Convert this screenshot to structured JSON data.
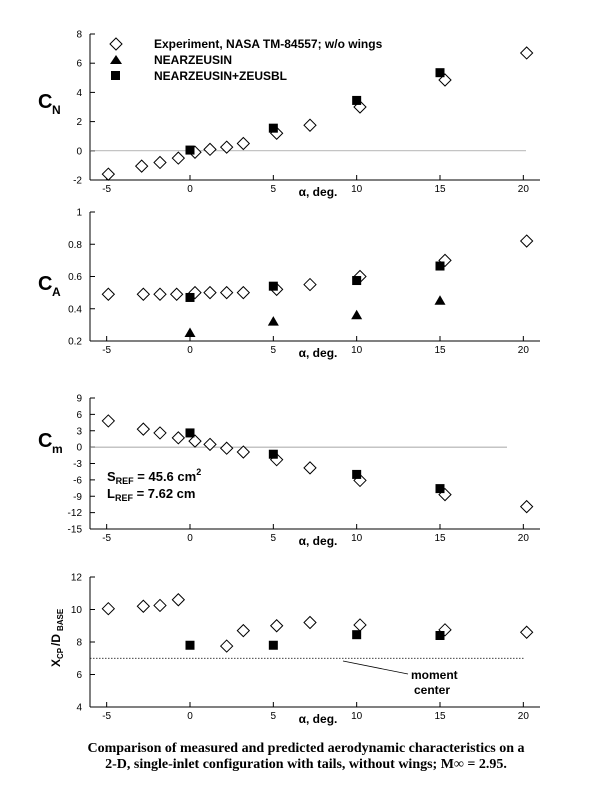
{
  "caption": {
    "line1": "Comparison of measured and predicted aerodynamic characteristics on a",
    "line2": "2-D, single-inlet configuration with tails, without wings;  M∞ = 2.95."
  },
  "legend": {
    "experiment": "Experiment, NASA TM-84557; w/o wings",
    "nearzeusin": "NEARZEUSIN",
    "zeusbl": "NEARZEUSIN+ZEUSBL"
  },
  "reference": {
    "sref": "SREF = 45.6 cm2",
    "lref": "LREF = 7.62 cm"
  },
  "moment_center_label": [
    "moment",
    "center"
  ],
  "colors": {
    "marker": "#000000",
    "background": "#ffffff",
    "zero_line": "#888888"
  },
  "chart_data": [
    {
      "type": "scatter",
      "id": "cn",
      "ylabel": "CN",
      "xlabel": "α, deg.",
      "xlim": [
        -6,
        21
      ],
      "ylim": [
        -2,
        8
      ],
      "xticks": [
        -5,
        0,
        5,
        10,
        15,
        20
      ],
      "yticks": [
        -2,
        0,
        2,
        4,
        6,
        8
      ],
      "reference_line_y": 0,
      "series": [
        {
          "name": "Experiment, NASA TM-84557; w/o wings",
          "marker": "diamond",
          "x": [
            -4.9,
            -2.9,
            -1.8,
            -0.7,
            0.3,
            1.2,
            2.2,
            3.2,
            5.2,
            7.2,
            10.2,
            15.3,
            20.2
          ],
          "y": [
            -1.6,
            -1.05,
            -0.8,
            -0.5,
            -0.1,
            0.1,
            0.25,
            0.5,
            1.2,
            1.75,
            3.0,
            4.85,
            6.7
          ]
        },
        {
          "name": "NEARZEUSIN+ZEUSBL",
          "marker": "square",
          "x": [
            0,
            5,
            10,
            15
          ],
          "y": [
            0.05,
            1.55,
            3.45,
            5.35
          ]
        }
      ]
    },
    {
      "type": "scatter",
      "id": "ca",
      "ylabel": "CA",
      "xlabel": "α, deg.",
      "xlim": [
        -6,
        21
      ],
      "ylim": [
        0.2,
        1.0
      ],
      "xticks": [
        -5,
        0,
        5,
        10,
        15,
        20
      ],
      "yticks": [
        0.2,
        0.4,
        0.6,
        0.8,
        1
      ],
      "series": [
        {
          "name": "Experiment, NASA TM-84557; w/o wings",
          "marker": "diamond",
          "x": [
            -4.9,
            -2.8,
            -1.8,
            -0.8,
            0.3,
            1.2,
            2.2,
            3.2,
            5.2,
            7.2,
            10.2,
            15.3,
            20.2
          ],
          "y": [
            0.49,
            0.49,
            0.49,
            0.49,
            0.5,
            0.5,
            0.5,
            0.5,
            0.52,
            0.55,
            0.6,
            0.7,
            0.82
          ]
        },
        {
          "name": "NEARZEUSIN",
          "marker": "triangle",
          "x": [
            0,
            5,
            10,
            15
          ],
          "y": [
            0.25,
            0.32,
            0.36,
            0.45
          ]
        },
        {
          "name": "NEARZEUSIN+ZEUSBL",
          "marker": "square",
          "x": [
            0,
            5,
            10,
            15
          ],
          "y": [
            0.47,
            0.54,
            0.575,
            0.665
          ]
        }
      ]
    },
    {
      "type": "scatter",
      "id": "cm",
      "ylabel": "Cm",
      "xlabel": "α, deg.",
      "xlim": [
        -6,
        21
      ],
      "ylim": [
        -15,
        9
      ],
      "xticks": [
        -5,
        0,
        5,
        10,
        15,
        20
      ],
      "yticks": [
        -15,
        -12,
        -9,
        -6,
        -3,
        0,
        3,
        6,
        9
      ],
      "reference_line_y": 0,
      "series": [
        {
          "name": "Experiment, NASA TM-84557; w/o wings",
          "marker": "diamond",
          "x": [
            -4.9,
            -2.8,
            -1.8,
            -0.7,
            0.3,
            1.2,
            2.2,
            3.2,
            5.2,
            7.2,
            10.2,
            15.3,
            20.2
          ],
          "y": [
            4.8,
            3.3,
            2.6,
            1.7,
            1.1,
            0.5,
            -0.2,
            -0.9,
            -2.3,
            -3.8,
            -6.1,
            -8.7,
            -10.9
          ]
        },
        {
          "name": "NEARZEUSIN+ZEUSBL",
          "marker": "square",
          "x": [
            0,
            5,
            10,
            15
          ],
          "y": [
            2.6,
            -1.3,
            -5.0,
            -7.6
          ]
        }
      ]
    },
    {
      "type": "scatter",
      "id": "xcp",
      "ylabel": "XCP/DBASE",
      "xlabel": "α, deg.",
      "xlim": [
        -6,
        21
      ],
      "ylim": [
        4,
        12
      ],
      "xticks": [
        -5,
        0,
        5,
        10,
        15,
        20
      ],
      "yticks": [
        4,
        6,
        8,
        10,
        12
      ],
      "reference_line_y": 7,
      "series": [
        {
          "name": "Experiment, NASA TM-84557; w/o wings",
          "marker": "diamond",
          "x": [
            -4.9,
            -2.8,
            -1.8,
            -0.7,
            2.2,
            3.2,
            5.2,
            7.2,
            10.2,
            15.3,
            20.2
          ],
          "y": [
            10.05,
            10.2,
            10.25,
            10.6,
            7.75,
            8.7,
            9.0,
            9.2,
            9.05,
            8.75,
            8.6
          ]
        },
        {
          "name": "NEARZEUSIN+ZEUSBL",
          "marker": "square",
          "x": [
            0,
            5,
            10,
            15
          ],
          "y": [
            7.8,
            7.8,
            8.45,
            8.4
          ]
        }
      ]
    }
  ]
}
